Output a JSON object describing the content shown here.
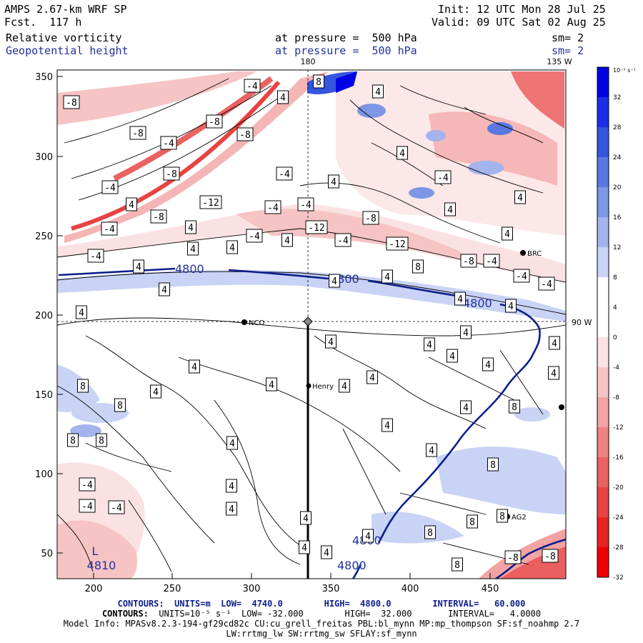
{
  "header": {
    "model": "AMPS 2.67-km WRF SP",
    "forecast_label": "Fcst.",
    "forecast_hours": "117 h",
    "init_label": "Init:",
    "init_time": "12 UTC Mon 28 Jul 25",
    "valid_label": "Valid:",
    "valid_time": "09 UTC Sat 02 Aug 25"
  },
  "fields": [
    {
      "name": "Relative vorticity",
      "level_label": "at pressure =",
      "level": "500 hPa",
      "smooth": "sm= 2",
      "color": "#000000"
    },
    {
      "name": "Geopotential height",
      "level_label": "at pressure =",
      "level": "500 hPa",
      "smooth": "sm= 2",
      "color": "#2030a0"
    }
  ],
  "map": {
    "x_ticks": [
      "200",
      "250",
      "300",
      "350",
      "400",
      "450"
    ],
    "y_ticks": [
      "350",
      "300",
      "250",
      "200",
      "150",
      "100",
      "50"
    ],
    "meridian_labels": {
      "top": "180",
      "top_right": "135 W",
      "right": "90 W"
    },
    "stations": [
      "NCO",
      "Henry",
      "BRC",
      "AG2"
    ],
    "low_label": "L",
    "low_value": "4810",
    "height_contour_label": "4800",
    "vorticity_labels": [
      "4",
      "-4",
      "8",
      "-8",
      "-12"
    ]
  },
  "colorbar": {
    "unit": "10⁻⁵ s⁻¹",
    "labels": [
      "32",
      "28",
      "24",
      "20",
      "16",
      "12",
      "8",
      "4",
      "0",
      "-4",
      "-8",
      "-12",
      "-16",
      "-20",
      "-24",
      "-28",
      "-32"
    ],
    "colors_top_to_bottom": [
      "#0000e6",
      "#1a2ee8",
      "#3355e0",
      "#5a78e0",
      "#7d96e6",
      "#a3b3ee",
      "#c9d3f5",
      "#ffffff",
      "#ffffff",
      "#fbe2e2",
      "#f6c4c4",
      "#f2a3a3",
      "#ee8282",
      "#ea6262",
      "#e84242",
      "#e82222",
      "#ee0000"
    ]
  },
  "footer": {
    "line1_prefix": "CONTOURS:",
    "line1": "UNITS=m  LOW=  4740.0        HIGH=  4800.0        INTERVAL=   60.000",
    "line2_prefix": "CONTOURS:",
    "line2": "UNITS=10⁻⁵ s⁻¹  LOW= -32.000        HIGH=  32.000       INTERVAL=   4.0000",
    "line3": "Model Info: MPASv8.2.3-194-gf29cd82c CU:cu_grell_freitas PBL:bl_mynn MP:mp_thompson SF:sf_noahmp 2.7",
    "line4": "LW:rrtmg_lw SW:rrtmg_sw SFLAY:sf_mynn"
  }
}
